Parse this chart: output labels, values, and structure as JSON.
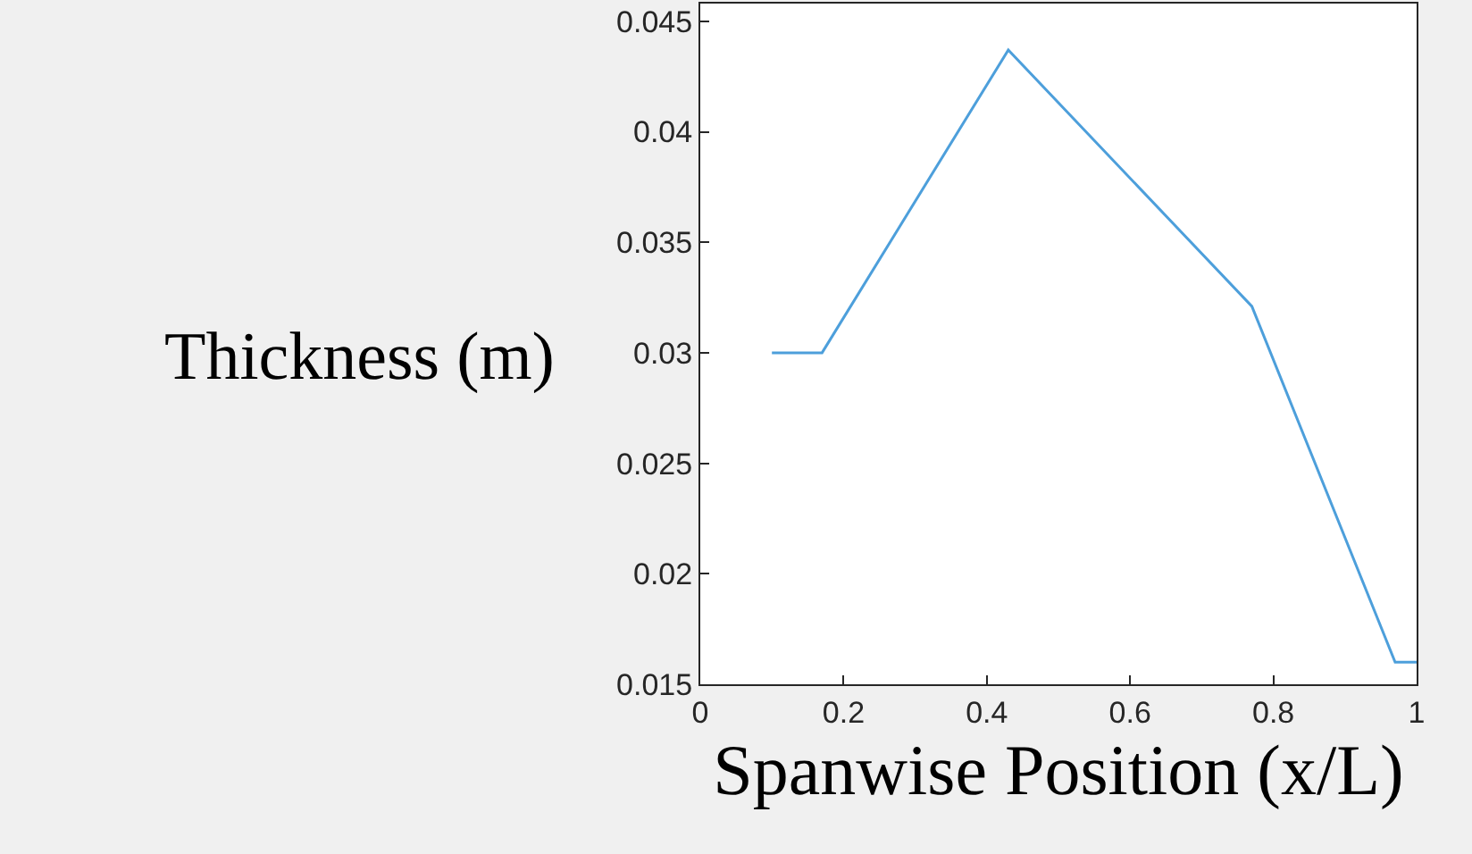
{
  "chart_data": {
    "type": "line",
    "xlabel": "Spanwise Position (x/L)",
    "ylabel": "Thickness (m)",
    "x": [
      0.1,
      0.17,
      0.43,
      0.77,
      0.97,
      1.0
    ],
    "series": [
      {
        "color": "#4d9fdb",
        "values": [
          0.03,
          0.03,
          0.0437,
          0.0321,
          0.016,
          0.016
        ]
      }
    ],
    "xlim": [
      0,
      1
    ],
    "xticks": [
      0,
      0.2,
      0.4,
      0.6,
      0.8,
      1
    ],
    "ylim": [
      0.015,
      0.0458
    ],
    "yticks": [
      0.015,
      0.02,
      0.025,
      0.03,
      0.035,
      0.04,
      0.045
    ],
    "legend": false,
    "marker": "none",
    "line_style": "solid"
  }
}
